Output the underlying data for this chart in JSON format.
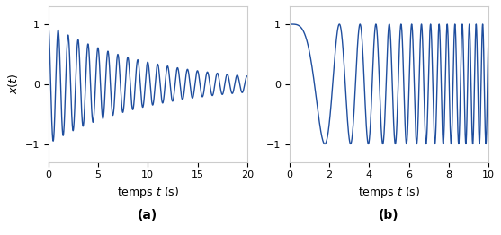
{
  "plot_a": {
    "t_start": 0,
    "t_end": 20,
    "n_points": 5000,
    "decay": 0.1,
    "freq": 1.0,
    "xlabel": "temps $t$ (s)",
    "ylabel": "$x(t)$",
    "label": "(a)",
    "xlim": [
      0,
      20
    ],
    "ylim": [
      -1.3,
      1.3
    ],
    "xticks": [
      0,
      5,
      10,
      15,
      20
    ],
    "yticks": [
      -1,
      0,
      1
    ]
  },
  "plot_b": {
    "t_start": 0,
    "t_end": 10,
    "n_points": 5000,
    "xlabel": "temps $t$ (s)",
    "label": "(b)",
    "xlim": [
      0,
      10
    ],
    "ylim": [
      -1.3,
      1.3
    ],
    "xticks": [
      0,
      2,
      4,
      6,
      8,
      10
    ],
    "yticks": [
      -1,
      0,
      1
    ]
  },
  "line_color": "#1f4e9e",
  "line_width": 1.0,
  "background_color": "#ffffff",
  "figsize": [
    5.57,
    2.62
  ],
  "dpi": 100,
  "label_fontsize": 9,
  "caption_fontsize": 10,
  "tick_fontsize": 8
}
